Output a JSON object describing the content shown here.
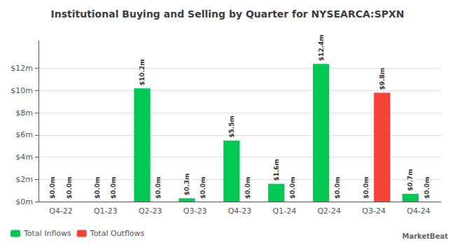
{
  "chart_data": {
    "type": "bar",
    "title": "Institutional Buying and Selling by Quarter for NYSEARCA:SPXN",
    "categories": [
      "Q4-22",
      "Q1-23",
      "Q2-23",
      "Q3-23",
      "Q4-23",
      "Q1-24",
      "Q2-24",
      "Q3-24",
      "Q4-24"
    ],
    "series": [
      {
        "name": "Total Inflows",
        "color": "#00c853",
        "values": [
          0.0,
          0.0,
          10.2,
          0.3,
          5.5,
          1.6,
          12.4,
          0.0,
          0.7
        ],
        "value_labels": [
          "$0.0m",
          "$0.0m",
          "$10.2m",
          "$0.3m",
          "$5.5m",
          "$1.6m",
          "$12.4m",
          "$0.0m",
          "$0.7m"
        ]
      },
      {
        "name": "Total Outflows",
        "color": "#f44336",
        "values": [
          0.0,
          0.0,
          0.0,
          0.0,
          0.0,
          0.0,
          0.0,
          9.8,
          0.0
        ],
        "value_labels": [
          "$0.0m",
          "$0.0m",
          "$0.0m",
          "$0.0m",
          "$0.0m",
          "$0.0m",
          "$0.0m",
          "$9.8m",
          "$0.0m"
        ]
      }
    ],
    "ylim": [
      0,
      14.5
    ],
    "yticks": [
      {
        "value": 0,
        "label": "$0m"
      },
      {
        "value": 2,
        "label": "$2m"
      },
      {
        "value": 4,
        "label": "$4m"
      },
      {
        "value": 6,
        "label": "$6m"
      },
      {
        "value": 8,
        "label": "$8m"
      },
      {
        "value": 10,
        "label": "$10m"
      },
      {
        "value": 12,
        "label": "$12m"
      }
    ],
    "grid": true,
    "legend": "lower left",
    "data_labels": true,
    "annotations": [
      "MarketBeat"
    ]
  }
}
